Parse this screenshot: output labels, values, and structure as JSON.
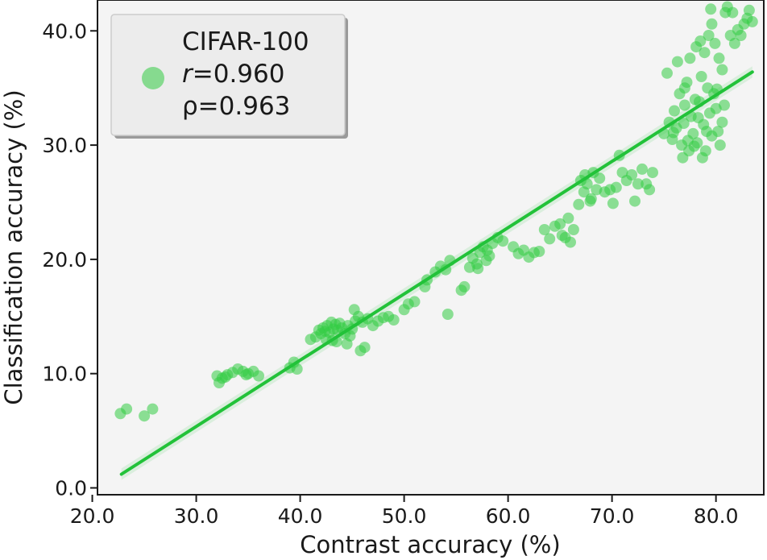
{
  "chart_data": {
    "type": "scatter",
    "xlabel": "Contrast accuracy (%)",
    "ylabel": "Classification accuracy (%)",
    "xlim": [
      20.5,
      84.6
    ],
    "ylim": [
      -0.6,
      42.7
    ],
    "xticks": [
      "20.0",
      "30.0",
      "40.0",
      "50.0",
      "60.0",
      "70.0",
      "80.0"
    ],
    "yticks": [
      "0.0",
      "10.0",
      "20.0",
      "30.0",
      "40.0"
    ],
    "grid": false,
    "background": "#f4f4f4",
    "point_color": "#33cc44",
    "line_color": "#22c239",
    "legend": {
      "position": "top-left",
      "label": "CIFAR-100",
      "r_symbol": "r",
      "r_value": "=0.960",
      "rho_text": "ρ=0.963"
    },
    "regression": {
      "x": [
        22.8,
        83.5
      ],
      "y": [
        1.2,
        36.4
      ]
    },
    "series": [
      {
        "points": [
          [
            22.7,
            6.5
          ],
          [
            23.3,
            6.9
          ],
          [
            25.0,
            6.3
          ],
          [
            25.8,
            6.9
          ],
          [
            32.0,
            9.8
          ],
          [
            32.2,
            9.2
          ],
          [
            32.5,
            9.6
          ],
          [
            33.0,
            9.9
          ],
          [
            33.5,
            10.1
          ],
          [
            34.0,
            10.4
          ],
          [
            34.5,
            10.2
          ],
          [
            35.0,
            10.0
          ],
          [
            35.5,
            10.2
          ],
          [
            36.0,
            9.8
          ],
          [
            32.8,
            9.7
          ],
          [
            34.8,
            9.9
          ],
          [
            39.0,
            10.5
          ],
          [
            39.4,
            11.0
          ],
          [
            39.7,
            10.4
          ],
          [
            41.0,
            13.0
          ],
          [
            41.5,
            13.2
          ],
          [
            41.8,
            13.8
          ],
          [
            42.0,
            13.5
          ],
          [
            42.2,
            14.0
          ],
          [
            42.4,
            13.7
          ],
          [
            42.6,
            14.2
          ],
          [
            42.8,
            13.6
          ],
          [
            43.0,
            14.5
          ],
          [
            43.2,
            13.9
          ],
          [
            43.4,
            14.3
          ],
          [
            43.6,
            13.8
          ],
          [
            43.8,
            14.4
          ],
          [
            44.0,
            14.0
          ],
          [
            44.3,
            13.5
          ],
          [
            44.6,
            14.2
          ],
          [
            45.0,
            13.9
          ],
          [
            45.3,
            14.6
          ],
          [
            45.6,
            15.0
          ],
          [
            46.0,
            14.5
          ],
          [
            46.5,
            14.8
          ],
          [
            47.0,
            14.2
          ],
          [
            47.5,
            14.6
          ],
          [
            48.0,
            14.9
          ],
          [
            48.5,
            15.0
          ],
          [
            49.0,
            14.7
          ],
          [
            42.5,
            13.0
          ],
          [
            43.5,
            12.8
          ],
          [
            44.5,
            12.6
          ],
          [
            45.8,
            12.0
          ],
          [
            46.2,
            12.3
          ],
          [
            43.1,
            12.9
          ],
          [
            44.8,
            13.3
          ],
          [
            45.2,
            15.6
          ],
          [
            50.0,
            15.6
          ],
          [
            50.4,
            16.1
          ],
          [
            51.0,
            16.3
          ],
          [
            52.0,
            17.6
          ],
          [
            52.2,
            18.2
          ],
          [
            53.0,
            18.9
          ],
          [
            53.5,
            19.4
          ],
          [
            54.0,
            19.1
          ],
          [
            54.4,
            19.9
          ],
          [
            54.2,
            15.2
          ],
          [
            55.5,
            17.3
          ],
          [
            55.8,
            17.6
          ],
          [
            56.3,
            19.3
          ],
          [
            56.6,
            20.1
          ],
          [
            57.0,
            19.6
          ],
          [
            57.3,
            20.6
          ],
          [
            57.6,
            21.1
          ],
          [
            57.9,
            19.9
          ],
          [
            58.2,
            20.3
          ],
          [
            58.5,
            21.4
          ],
          [
            59.0,
            21.9
          ],
          [
            59.5,
            21.6
          ],
          [
            57.1,
            19.2
          ],
          [
            58.0,
            20.8
          ],
          [
            60.5,
            21.1
          ],
          [
            61.0,
            20.5
          ],
          [
            61.5,
            20.8
          ],
          [
            62.0,
            20.2
          ],
          [
            62.5,
            20.6
          ],
          [
            63.0,
            20.7
          ],
          [
            63.5,
            22.6
          ],
          [
            64.0,
            21.8
          ],
          [
            64.5,
            22.9
          ],
          [
            65.0,
            23.1
          ],
          [
            65.5,
            21.9
          ],
          [
            65.8,
            23.6
          ],
          [
            66.0,
            21.5
          ],
          [
            66.3,
            22.6
          ],
          [
            65.2,
            22.1
          ],
          [
            66.8,
            24.8
          ],
          [
            67.0,
            26.9
          ],
          [
            67.3,
            25.9
          ],
          [
            67.6,
            26.6
          ],
          [
            67.9,
            25.1
          ],
          [
            68.2,
            27.6
          ],
          [
            68.5,
            26.1
          ],
          [
            68.8,
            27.1
          ],
          [
            69.3,
            25.9
          ],
          [
            69.8,
            26.1
          ],
          [
            70.1,
            24.9
          ],
          [
            70.4,
            26.3
          ],
          [
            70.7,
            29.1
          ],
          [
            71.0,
            27.6
          ],
          [
            71.4,
            26.9
          ],
          [
            71.9,
            27.4
          ],
          [
            72.2,
            25.1
          ],
          [
            72.5,
            26.6
          ],
          [
            72.9,
            27.9
          ],
          [
            73.3,
            26.6
          ],
          [
            73.6,
            26.1
          ],
          [
            73.9,
            27.6
          ],
          [
            67.4,
            27.4
          ],
          [
            68.0,
            25.3
          ],
          [
            75.0,
            31.0
          ],
          [
            75.5,
            32.0
          ],
          [
            75.8,
            30.5
          ],
          [
            76.0,
            33.0
          ],
          [
            76.2,
            31.5
          ],
          [
            76.5,
            34.5
          ],
          [
            76.7,
            30.0
          ],
          [
            77.0,
            33.5
          ],
          [
            77.2,
            35.5
          ],
          [
            77.4,
            29.5
          ],
          [
            77.6,
            32.5
          ],
          [
            77.8,
            31.0
          ],
          [
            78.0,
            34.0
          ],
          [
            78.2,
            30.2
          ],
          [
            78.4,
            33.8
          ],
          [
            78.6,
            36.0
          ],
          [
            78.8,
            31.8
          ],
          [
            79.0,
            29.5
          ],
          [
            79.2,
            35.0
          ],
          [
            79.4,
            32.8
          ],
          [
            79.6,
            30.8
          ],
          [
            79.8,
            34.5
          ],
          [
            80.0,
            33.2
          ],
          [
            80.2,
            31.2
          ],
          [
            80.4,
            30.0
          ],
          [
            80.6,
            32.0
          ],
          [
            80.8,
            33.5
          ],
          [
            76.8,
            28.9
          ],
          [
            77.9,
            29.9
          ],
          [
            78.7,
            28.9
          ],
          [
            75.3,
            36.3
          ],
          [
            76.3,
            37.3
          ],
          [
            77.5,
            37.6
          ],
          [
            78.1,
            38.6
          ],
          [
            78.5,
            39.1
          ],
          [
            78.9,
            38.1
          ],
          [
            79.3,
            39.6
          ],
          [
            79.6,
            40.6
          ],
          [
            79.9,
            38.9
          ],
          [
            80.3,
            37.6
          ],
          [
            80.6,
            36.6
          ],
          [
            80.9,
            41.6
          ],
          [
            81.1,
            42.1
          ],
          [
            81.4,
            39.6
          ],
          [
            81.8,
            38.9
          ],
          [
            82.1,
            40.1
          ],
          [
            82.4,
            39.6
          ],
          [
            82.7,
            40.6
          ],
          [
            83.0,
            41.1
          ],
          [
            83.2,
            41.8
          ],
          [
            83.5,
            40.8
          ],
          [
            81.6,
            41.6
          ],
          [
            79.5,
            41.9
          ],
          [
            77.0,
            35.0
          ],
          [
            76.9,
            31.9
          ],
          [
            77.3,
            30.4
          ],
          [
            78.3,
            32.4
          ],
          [
            79.1,
            31.2
          ],
          [
            80.1,
            34.9
          ],
          [
            75.9,
            31.1
          ]
        ]
      }
    ]
  }
}
